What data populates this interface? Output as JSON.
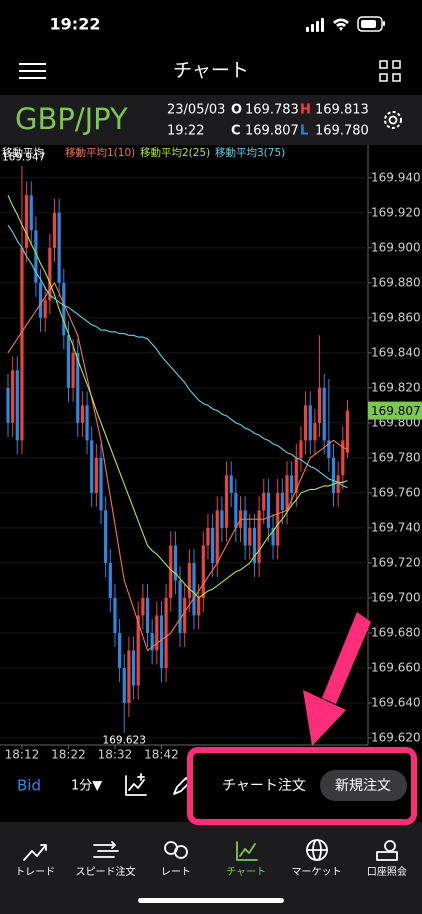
{
  "status": {
    "time": "19:22"
  },
  "nav": {
    "title": "チャート"
  },
  "quote": {
    "symbol": "GBP/JPY",
    "date": "23/05/03",
    "time": "19:22",
    "open_label": "O",
    "open": "169.783",
    "high_label": "H",
    "high": "169.813",
    "close_label": "C",
    "close": "169.807",
    "low_label": "L",
    "low": "169.780"
  },
  "chart_data": {
    "type": "candlestick",
    "legend_title": "移動平均",
    "up_color": "#e8453c",
    "down_color": "#2f88de",
    "categories": [
      null,
      null,
      null,
      "18:12",
      null,
      null,
      null,
      null,
      null,
      null,
      null,
      null,
      null,
      "18:22",
      null,
      null,
      null,
      null,
      null,
      null,
      null,
      null,
      null,
      "18:32",
      null,
      null,
      null,
      null,
      null,
      null,
      null,
      null,
      null,
      "18:42",
      null,
      null,
      null,
      null,
      null,
      null,
      null,
      null,
      null,
      null,
      null,
      null,
      null,
      null,
      null,
      null,
      null,
      null,
      null,
      null,
      null,
      null,
      null,
      null,
      null,
      null,
      null,
      null,
      null,
      null,
      null,
      null,
      null,
      null,
      null,
      null,
      null,
      null,
      null,
      null
    ],
    "open": [
      169.82,
      169.8,
      169.83,
      169.79,
      169.9,
      169.93,
      169.91,
      169.88,
      169.86,
      169.87,
      169.9,
      169.92,
      169.88,
      169.85,
      169.82,
      169.84,
      169.8,
      169.81,
      169.79,
      169.76,
      169.78,
      169.75,
      169.72,
      169.7,
      169.68,
      169.66,
      169.64,
      169.67,
      169.65,
      169.69,
      169.7,
      169.68,
      169.67,
      169.69,
      169.66,
      169.7,
      169.73,
      169.71,
      169.68,
      169.7,
      169.72,
      169.69,
      169.7,
      169.73,
      169.74,
      169.72,
      169.75,
      169.74,
      169.77,
      169.76,
      169.74,
      169.75,
      169.73,
      169.74,
      169.72,
      169.75,
      169.76,
      169.74,
      169.73,
      169.76,
      169.75,
      169.77,
      169.76,
      169.78,
      169.79,
      169.81,
      169.79,
      169.8,
      169.82,
      169.79,
      169.78,
      169.76,
      169.77,
      169.783
    ],
    "high": [
      169.828,
      169.838,
      169.838,
      169.947,
      169.938,
      169.938,
      169.918,
      169.888,
      169.878,
      169.908,
      169.928,
      169.928,
      169.888,
      169.858,
      169.848,
      169.848,
      169.818,
      169.818,
      169.798,
      169.788,
      169.788,
      169.758,
      169.728,
      169.708,
      169.688,
      169.668,
      169.678,
      169.678,
      169.698,
      169.708,
      169.708,
      169.688,
      169.698,
      169.698,
      169.708,
      169.738,
      169.738,
      169.718,
      169.708,
      169.728,
      169.728,
      169.708,
      169.738,
      169.748,
      169.748,
      169.758,
      169.758,
      169.778,
      169.778,
      169.768,
      169.758,
      169.758,
      169.748,
      169.748,
      169.758,
      169.768,
      169.768,
      169.748,
      169.768,
      169.768,
      169.778,
      169.778,
      169.788,
      169.798,
      169.818,
      169.818,
      169.808,
      169.85,
      169.828,
      169.825,
      169.788,
      169.778,
      169.798,
      169.813
    ],
    "low": [
      169.792,
      169.792,
      169.782,
      169.782,
      169.892,
      169.902,
      169.872,
      169.852,
      169.852,
      169.862,
      169.892,
      169.872,
      169.842,
      169.812,
      169.812,
      169.792,
      169.792,
      169.782,
      169.752,
      169.752,
      169.742,
      169.712,
      169.692,
      169.672,
      169.652,
      169.623,
      169.632,
      169.642,
      169.642,
      169.682,
      169.672,
      169.662,
      169.662,
      169.652,
      169.652,
      169.692,
      169.702,
      169.672,
      169.672,
      169.692,
      169.682,
      169.682,
      169.692,
      169.722,
      169.712,
      169.712,
      169.732,
      169.732,
      169.752,
      169.732,
      169.732,
      169.722,
      169.722,
      169.712,
      169.712,
      169.742,
      169.732,
      169.722,
      169.722,
      169.742,
      169.742,
      169.752,
      169.752,
      169.772,
      169.782,
      169.782,
      169.782,
      169.792,
      169.782,
      169.772,
      169.752,
      169.752,
      169.762,
      169.78
    ],
    "close": [
      169.8,
      169.83,
      169.79,
      169.9,
      169.93,
      169.91,
      169.88,
      169.86,
      169.87,
      169.9,
      169.92,
      169.88,
      169.85,
      169.82,
      169.84,
      169.8,
      169.81,
      169.79,
      169.76,
      169.78,
      169.75,
      169.72,
      169.7,
      169.68,
      169.66,
      169.64,
      169.67,
      169.65,
      169.69,
      169.7,
      169.68,
      169.67,
      169.69,
      169.66,
      169.7,
      169.73,
      169.71,
      169.68,
      169.7,
      169.72,
      169.69,
      169.7,
      169.73,
      169.74,
      169.72,
      169.75,
      169.74,
      169.77,
      169.76,
      169.74,
      169.75,
      169.73,
      169.74,
      169.72,
      169.75,
      169.76,
      169.74,
      169.73,
      169.76,
      169.75,
      169.77,
      169.76,
      169.78,
      169.79,
      169.81,
      169.79,
      169.8,
      169.82,
      169.79,
      169.78,
      169.76,
      169.77,
      169.79,
      169.807
    ],
    "series": [
      {
        "name": "移動平均1(10)",
        "color": "#f07850",
        "values": [
          169.84,
          169.844,
          169.848,
          169.852,
          169.856,
          169.86,
          169.864,
          169.868,
          169.872,
          169.876,
          169.88,
          169.874,
          169.868,
          169.862,
          169.856,
          169.85,
          169.838,
          169.826,
          169.814,
          169.802,
          169.79,
          169.774,
          169.758,
          169.742,
          169.726,
          169.71,
          169.702,
          169.694,
          169.686,
          169.678,
          169.67,
          169.672,
          169.674,
          169.676,
          169.678,
          169.68,
          169.684,
          169.688,
          169.692,
          169.696,
          169.7,
          169.704,
          169.708,
          169.712,
          169.716,
          169.72,
          169.725,
          169.73,
          169.735,
          169.74,
          169.745,
          169.745,
          169.745,
          169.745,
          169.745,
          169.745,
          169.746,
          169.747,
          169.748,
          169.749,
          169.75,
          169.756,
          169.762,
          169.768,
          169.774,
          169.78,
          169.782,
          169.784,
          169.786,
          169.788,
          169.79,
          169.788,
          169.786,
          169.785
        ]
      },
      {
        "name": "移動平均2(25)",
        "color": "#b4e63c",
        "values": [
          169.93,
          169.924,
          169.919,
          169.913,
          169.908,
          169.902,
          169.897,
          169.891,
          169.886,
          169.88,
          169.873,
          169.865,
          169.858,
          169.851,
          169.844,
          169.836,
          169.829,
          169.822,
          169.815,
          169.807,
          169.8,
          169.793,
          169.786,
          169.779,
          169.772,
          169.765,
          169.758,
          169.751,
          169.744,
          169.737,
          169.73,
          169.727,
          169.725,
          169.722,
          169.719,
          169.716,
          169.714,
          169.711,
          169.708,
          169.705,
          169.703,
          169.7,
          169.702,
          169.704,
          169.705,
          169.707,
          169.709,
          169.711,
          169.713,
          169.715,
          169.716,
          169.718,
          169.72,
          169.724,
          169.727,
          169.731,
          169.735,
          169.738,
          169.742,
          169.745,
          169.749,
          169.753,
          169.756,
          169.76,
          169.761,
          169.762,
          169.762,
          169.763,
          169.764,
          169.764,
          169.765,
          169.766,
          169.766,
          169.767
        ]
      },
      {
        "name": "移動平均3(75)",
        "color": "#5fd3e8",
        "values": [
          169.913,
          169.909,
          169.904,
          169.9,
          169.895,
          169.891,
          169.886,
          169.882,
          169.877,
          169.873,
          169.871,
          169.869,
          169.867,
          169.866,
          169.864,
          169.862,
          169.86,
          169.858,
          169.856,
          169.855,
          169.853,
          169.853,
          169.852,
          169.852,
          169.851,
          169.851,
          169.85,
          169.85,
          169.849,
          169.849,
          169.848,
          169.845,
          169.842,
          169.838,
          169.835,
          169.832,
          169.829,
          169.826,
          169.823,
          169.819,
          169.816,
          169.813,
          169.811,
          169.81,
          169.808,
          169.807,
          169.805,
          169.804,
          169.802,
          169.8,
          169.799,
          169.797,
          169.796,
          169.794,
          169.793,
          169.791,
          169.79,
          169.788,
          169.787,
          169.785,
          169.783,
          169.782,
          169.78,
          169.779,
          169.777,
          169.775,
          169.774,
          169.772,
          169.77,
          169.768,
          169.767,
          169.766,
          169.764,
          169.763
        ]
      }
    ],
    "ylim": [
      169.616,
      169.957
    ],
    "yticks": [
      {
        "value": 169.62,
        "label": "169.620"
      },
      {
        "value": 169.64,
        "label": "169.640"
      },
      {
        "value": 169.66,
        "label": "169.660"
      },
      {
        "value": 169.68,
        "label": "169.680"
      },
      {
        "value": 169.7,
        "label": "169.700"
      },
      {
        "value": 169.72,
        "label": "169.720"
      },
      {
        "value": 169.74,
        "label": "169.740"
      },
      {
        "value": 169.76,
        "label": "169.760"
      },
      {
        "value": 169.78,
        "label": "169.780"
      },
      {
        "value": 169.8,
        "label": "169.800"
      },
      {
        "value": 169.82,
        "label": "169.820"
      },
      {
        "value": 169.84,
        "label": "169.840"
      },
      {
        "value": 169.86,
        "label": "169.860"
      },
      {
        "value": 169.88,
        "label": "169.880"
      },
      {
        "value": 169.9,
        "label": "169.900"
      },
      {
        "value": 169.92,
        "label": "169.920"
      },
      {
        "value": 169.94,
        "label": "169.940"
      }
    ],
    "high_label": 169.947,
    "low_label": 169.623,
    "last_price": 169.807,
    "last_price_color": "#7ec850"
  },
  "toolbar": {
    "side": "Bid",
    "interval": "1分▼",
    "chart_order": "チャート注文",
    "new_order": "新規注文"
  },
  "tabs": [
    "トレード",
    "スピード注文",
    "レート",
    "チャート",
    "マーケット",
    "口座照会"
  ]
}
